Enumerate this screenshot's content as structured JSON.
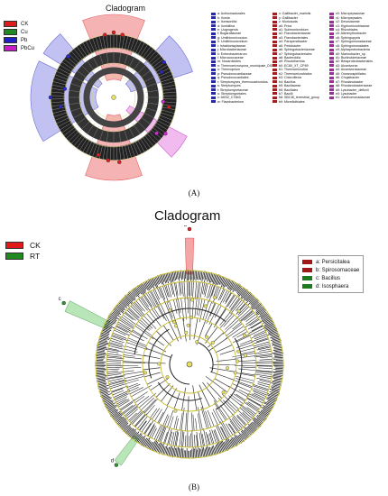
{
  "panel_a": {
    "title": "Cladogram",
    "label": "(A)",
    "legend": [
      {
        "name": "CK",
        "color": "#e0191b"
      },
      {
        "name": "Cu",
        "color": "#1f8a1f"
      },
      {
        "name": "Pb",
        "color": "#2020c8"
      },
      {
        "name": "PbCu",
        "color": "#c81ec8"
      }
    ],
    "taxa_columns": [
      {
        "color": "#2a2aa0",
        "items": [
          "a: Actinomadurales",
          "b: Ilumia",
          "c: Ilumsonilisi",
          "d: Ilunidiiina",
          "e: Uugrugenia",
          "f: Bogaraflaceae",
          "g: Umithinonicoccius",
          "h: Umilthinonicrinium",
          "i: Inhabiortapiaceae",
          "j: Microbacteriaceae",
          "k: Enterobacterarum",
          "l: Micrococcaceae",
          "m: Nocardioides",
          "n: Thermomicrospora_municipale_DSM_44069",
          "o: Thermoprium",
          "p: Pseudonocardiaceae",
          "q: Pseudonocardiales",
          "r: Streptomyces_thermocarboxidus",
          "s: Streptomyces",
          "t: Streptomycetaceae",
          "u: Streptomycetales",
          "v: AKIW_CT8b3",
          "w: Flavobacterium"
        ]
      },
      {
        "color": "#a02020",
        "items": [
          "x: Gallibacter_mariniis",
          "y: Gallibacter",
          "z: Muricauda",
          "a0: Prica",
          "a1: Sulimonicrobium",
          "a2: Flavobacteriaceae",
          "a3: Flavobacteriales",
          "a4: Paraperaibacter",
          "a5: Pedobacter",
          "a6: Sphingobacteriaceae",
          "a7: Sphingobacteriales",
          "a8: Bacteroidia",
          "a9: Rhodothermia",
          "b0: EC80_XT_CP89",
          "b1: Thermomicrobia",
          "b2: Thermomicrobiales",
          "b3: Chloroflexia",
          "b4: Bacillus",
          "b5: Bacillaceae",
          "b6: Bacillales",
          "b7: Bacilli",
          "b8: SB136_terrestrial_group",
          "b9: Micrelloibiales"
        ]
      },
      {
        "color": "#a02aa0",
        "items": [
          "c0: Micropepsaceae",
          "c1: Micropepsales",
          "c2: Devosiaceae",
          "c3: Hyphomicrobiaceae",
          "c4: Rhizobiales",
          "c5: Altererythrobacter",
          "c6: Sphingopyxis",
          "c7: Sphingomonadaceae",
          "c8: Sphingomonadales",
          "c9: Alphaproteobacteria",
          "d0: Marinobacter_sp",
          "d1: Burkholderiaceae",
          "d2: Betaproteobacteriales",
          "d3: Alcanivorax",
          "d4: Alcanivoracaceae",
          "d5: Oceanospirillales",
          "d6: Chujaibacter",
          "d7: Rhodanobacter",
          "d8: Rhodanobacteraceae",
          "d9: Lysobacter_defluvii",
          "e0: Lysobacter",
          "e1: Xanthomonadaceae"
        ]
      }
    ]
  },
  "panel_b": {
    "title": "Cladogram",
    "label": "(B)",
    "legend": [
      {
        "name": "CK",
        "color": "#e0191b"
      },
      {
        "name": "RT",
        "color": "#1f8a1f"
      }
    ],
    "taxa": [
      {
        "text": "a: Persicitalea",
        "color": "#a01818"
      },
      {
        "text": "b: Spirosomaceae",
        "color": "#a01818"
      },
      {
        "text": "c: Bacillus",
        "color": "#1f7a1f"
      },
      {
        "text": "d: Isosphaera",
        "color": "#1f7a1f"
      }
    ],
    "branch_labels": [
      "b",
      "c",
      "d"
    ]
  }
}
